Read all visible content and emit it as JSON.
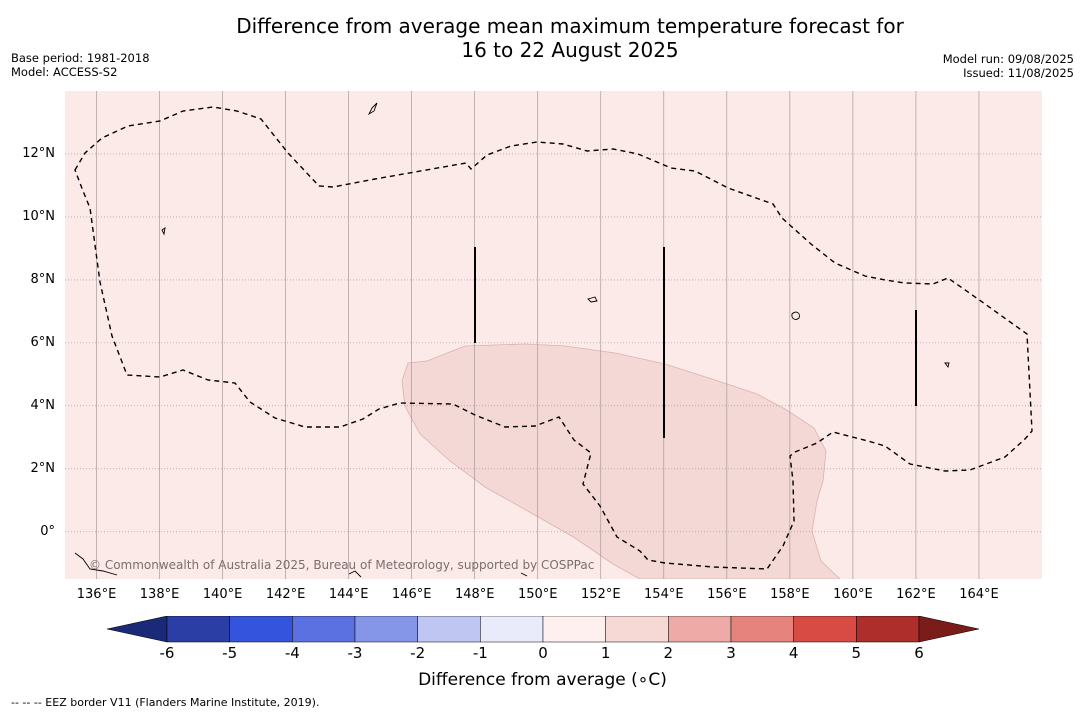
{
  "title": {
    "line1": "Difference from average mean maximum temperature forecast for",
    "line2": "16 to 22 August 2025"
  },
  "meta": {
    "base_period": "Base period: 1981-2018",
    "model": "Model: ACCESS-S2",
    "model_run": "Model run: 09/08/2025",
    "issued": "Issued: 11/08/2025"
  },
  "map": {
    "x_ticks": [
      {
        "lon": 136,
        "label": "136°E"
      },
      {
        "lon": 138,
        "label": "138°E"
      },
      {
        "lon": 140,
        "label": "140°E"
      },
      {
        "lon": 142,
        "label": "142°E"
      },
      {
        "lon": 144,
        "label": "144°E"
      },
      {
        "lon": 146,
        "label": "146°E"
      },
      {
        "lon": 148,
        "label": "148°E"
      },
      {
        "lon": 150,
        "label": "150°E"
      },
      {
        "lon": 152,
        "label": "152°E"
      },
      {
        "lon": 154,
        "label": "154°E"
      },
      {
        "lon": 156,
        "label": "156°E"
      },
      {
        "lon": 158,
        "label": "158°E"
      },
      {
        "lon": 160,
        "label": "160°E"
      },
      {
        "lon": 162,
        "label": "162°E"
      },
      {
        "lon": 164,
        "label": "164°E"
      }
    ],
    "y_ticks": [
      {
        "lat": 12,
        "label": "12°N"
      },
      {
        "lat": 10,
        "label": "10°N"
      },
      {
        "lat": 8,
        "label": "8°N"
      },
      {
        "lat": 6,
        "label": "6°N"
      },
      {
        "lat": 4,
        "label": "4°N"
      },
      {
        "lat": 2,
        "label": "2°N"
      },
      {
        "lat": 0,
        "label": "0°"
      }
    ],
    "lon_range": [
      135,
      166
    ],
    "lat_range": [
      -1.5,
      14
    ],
    "background_category": "0 to 1",
    "background_color": "#fbeae8",
    "warm_region_category": "1 to 2",
    "warm_region_color": "#f4d8d5",
    "copyright": "© Commonwealth of Australia 2025, Bureau of Meteorology, supported by COSPPac"
  },
  "colorbar": {
    "ticks": [
      "-6",
      "-5",
      "-4",
      "-3",
      "-2",
      "-1",
      "0",
      "1",
      "2",
      "3",
      "4",
      "5",
      "6"
    ],
    "colors": [
      "#2a3ea5",
      "#3554de",
      "#5b71e2",
      "#8595e8",
      "#bfc6f2",
      "#e9ebfa",
      "#fdf0ee",
      "#f6d8d5",
      "#eeaaa6",
      "#e6837d",
      "#d84b45",
      "#ad2e2a"
    ],
    "under_color": "#1a2a78",
    "over_color": "#7a1c1a",
    "label": "Difference from average (∘C)"
  },
  "footnote": "--  --  -- EEZ border V11 (Flanders Marine Institute, 2019)."
}
